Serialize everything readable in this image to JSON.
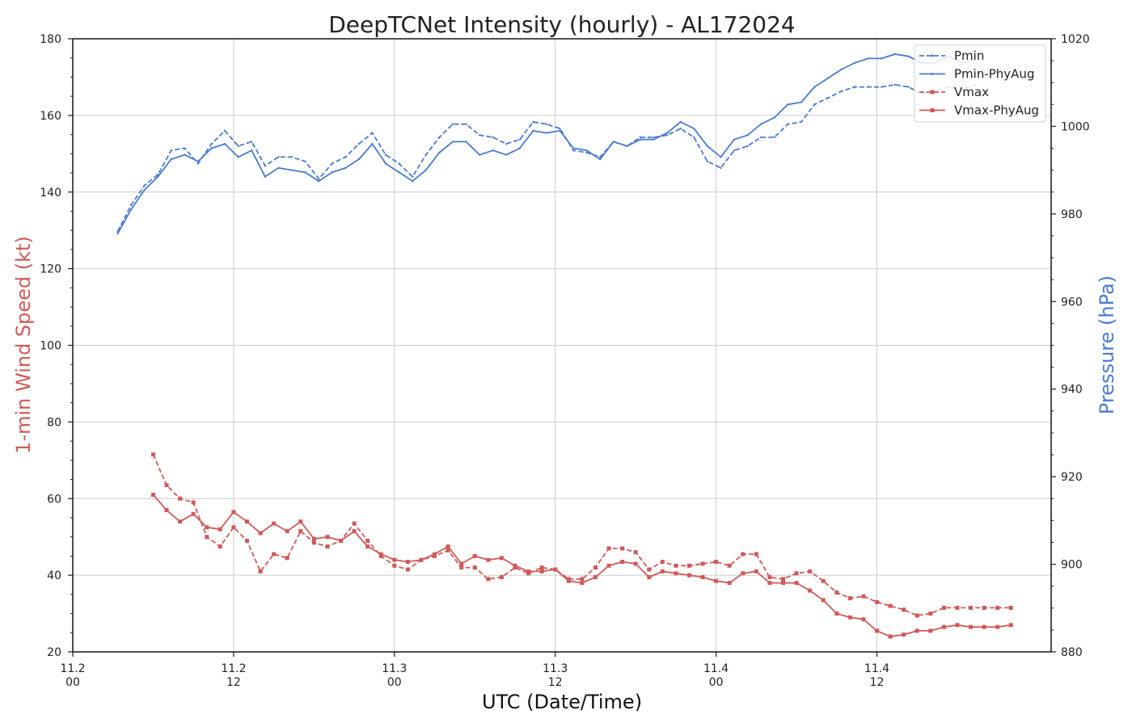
{
  "chart_data": {
    "type": "line",
    "title": "DeepTCNet Intensity (hourly) - AL172024",
    "xlabel": "UTC (Date/Time)",
    "ylabel_left": "1-min Wind Speed (kt)",
    "ylabel_right": "Pressure (hPa)",
    "x_ticks": [
      {
        "hour": 0,
        "line1": "11.2",
        "line2": "00"
      },
      {
        "hour": 12,
        "line1": "11.2",
        "line2": "12"
      },
      {
        "hour": 24,
        "line1": "11.3",
        "line2": "00"
      },
      {
        "hour": 36,
        "line1": "11.3",
        "line2": "12"
      },
      {
        "hour": 48,
        "line1": "11.4",
        "line2": "00"
      },
      {
        "hour": 60,
        "line1": "11.4",
        "line2": "12"
      }
    ],
    "xlim_hours": [
      0,
      73
    ],
    "ylim_left": [
      20,
      180
    ],
    "ylim_right": [
      880,
      1020
    ],
    "yticks_left": [
      20,
      40,
      60,
      80,
      100,
      120,
      140,
      160,
      180
    ],
    "yticks_right": [
      880,
      900,
      920,
      940,
      960,
      980,
      1000,
      1020
    ],
    "grid": true,
    "legend_position": "top-right",
    "colors": {
      "pressure": "#4a7bd0",
      "wind": "#d05a5a"
    },
    "series": [
      {
        "name": "Pmin",
        "axis": "right",
        "style": "dashed",
        "x_start_hour": 3.35,
        "x_step_hours": 1.0,
        "values": [
          976.0,
          982.0,
          986.5,
          989.0,
          994.5,
          995.0,
          991.5,
          996.0,
          999.0,
          995.5,
          996.5,
          991.0,
          993.0,
          993.0,
          992.0,
          988.0,
          991.5,
          993.0,
          996.0,
          998.5,
          993.5,
          991.5,
          988.5,
          993.5,
          997.5,
          1000.5,
          1000.5,
          998.0,
          997.5,
          996.0,
          997.0,
          1001.0,
          1000.5,
          999.5,
          994.5,
          994.0,
          993.0,
          996.5,
          995.5,
          997.5,
          997.5,
          998.0,
          999.5,
          997.5,
          992.0,
          990.5,
          994.5,
          995.5,
          997.5,
          997.5,
          1000.5,
          1001.0,
          1005.0,
          1006.5,
          1008.0,
          1009.0,
          1009.0,
          1009.0,
          1009.5,
          1009.0,
          1007.5,
          1008.0,
          1009.0,
          1008.5,
          1009.5
        ]
      },
      {
        "name": "Pmin-PhyAug",
        "axis": "right",
        "style": "solid",
        "x_start_hour": 3.35,
        "x_step_hours": 1.0,
        "values": [
          975.5,
          981.0,
          985.5,
          988.5,
          992.5,
          993.5,
          992.0,
          995.0,
          996.0,
          993.0,
          994.5,
          988.5,
          990.5,
          990.0,
          989.5,
          987.5,
          989.5,
          990.5,
          992.5,
          996.0,
          991.5,
          989.5,
          987.5,
          990.0,
          994.0,
          996.5,
          996.5,
          993.5,
          994.5,
          993.5,
          995.0,
          999.0,
          998.5,
          999.0,
          995.0,
          994.5,
          992.5,
          996.5,
          995.5,
          997.0,
          997.0,
          998.5,
          1001.0,
          999.5,
          995.5,
          993.0,
          997.0,
          998.0,
          1000.5,
          1002.0,
          1005.0,
          1005.5,
          1009.0,
          1011.0,
          1013.0,
          1014.5,
          1015.5,
          1015.5,
          1016.5,
          1016.0,
          1014.5,
          1014.5,
          1016.0,
          1014.5,
          1015.5
        ]
      },
      {
        "name": "Vmax",
        "axis": "left",
        "style": "dashed",
        "x_start_hour": 6.0,
        "x_step_hours": 1.0,
        "values": [
          71.5,
          63.5,
          60.0,
          59.0,
          50.0,
          47.5,
          52.5,
          49.0,
          41.0,
          45.5,
          44.5,
          51.5,
          48.5,
          47.5,
          49.0,
          53.5,
          49.0,
          45.0,
          42.5,
          41.5,
          44.0,
          45.0,
          46.5,
          42.0,
          42.0,
          39.0,
          39.5,
          42.0,
          40.5,
          42.0,
          41.5,
          39.0,
          39.0,
          42.0,
          47.0,
          47.0,
          46.0,
          41.5,
          43.5,
          42.5,
          42.5,
          43.0,
          43.5,
          42.5,
          45.5,
          45.5,
          39.5,
          39.0,
          40.5,
          41.0,
          38.5,
          35.5,
          34.0,
          34.5,
          33.0,
          32.0,
          31.0,
          29.5,
          30.0,
          31.5,
          31.5,
          31.5,
          31.5,
          31.5,
          31.5
        ]
      },
      {
        "name": "Vmax-PhyAug",
        "axis": "left",
        "style": "solid",
        "x_start_hour": 6.0,
        "x_step_hours": 1.0,
        "values": [
          61.0,
          57.0,
          54.0,
          56.0,
          52.5,
          52.0,
          56.5,
          54.0,
          51.0,
          53.5,
          51.5,
          54.0,
          49.5,
          50.0,
          49.0,
          51.5,
          47.5,
          45.5,
          44.0,
          43.5,
          44.0,
          45.5,
          47.5,
          43.0,
          45.0,
          44.0,
          44.5,
          42.5,
          41.0,
          41.0,
          41.5,
          38.5,
          38.0,
          39.5,
          42.5,
          43.5,
          43.0,
          39.5,
          41.0,
          40.5,
          40.0,
          39.5,
          38.5,
          38.0,
          40.5,
          41.0,
          38.0,
          38.0,
          38.0,
          36.0,
          33.5,
          30.0,
          29.0,
          28.5,
          25.5,
          24.0,
          24.5,
          25.5,
          25.5,
          26.5,
          27.0,
          26.5,
          26.5,
          26.5,
          27.0
        ]
      }
    ]
  }
}
